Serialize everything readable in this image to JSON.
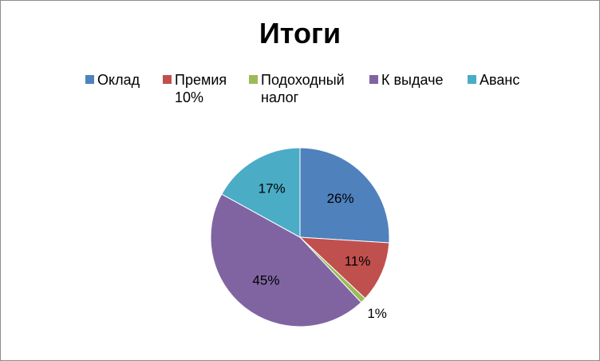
{
  "chart_data": {
    "type": "pie",
    "title": "Итоги",
    "categories": [
      "Оклад",
      "Премия 10%",
      "Подоходный налог",
      "К выдаче",
      "Аванс"
    ],
    "legend_lines": [
      [
        "Оклад"
      ],
      [
        "Премия",
        "10%"
      ],
      [
        "Подоходный",
        "налог"
      ],
      [
        "К выдаче"
      ],
      [
        "Аванс"
      ]
    ],
    "values": [
      26,
      11,
      1,
      45,
      17
    ],
    "labels": [
      "26%",
      "11%",
      "1%",
      "45%",
      "17%"
    ],
    "colors": [
      "#4f81bd",
      "#c0504d",
      "#9bbb59",
      "#8064a2",
      "#4bacc6"
    ],
    "legend_position": "top",
    "start_angle": "12 o'clock, clockwise"
  }
}
